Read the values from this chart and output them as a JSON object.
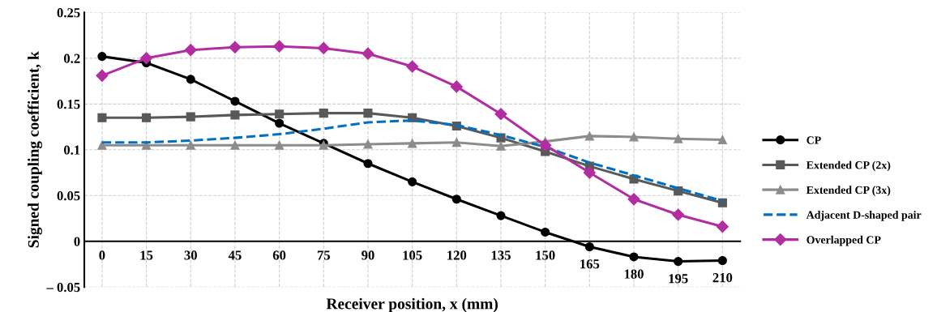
{
  "chart_data": {
    "type": "line",
    "xlabel": "Receiver position, x (mm)",
    "ylabel": "Signed coupling coefficient, k",
    "categories": [
      "0",
      "15",
      "30",
      "45",
      "60",
      "75",
      "90",
      "105",
      "120",
      "135",
      "150",
      "165",
      "180",
      "195",
      "210"
    ],
    "ylim": [
      -0.05,
      0.25
    ],
    "yticks": [
      {
        "value": -0.05,
        "label": "– 0.05"
      },
      0,
      0.05,
      0.1,
      0.15,
      0.2,
      0.25
    ],
    "grid": true,
    "legend": "right",
    "series": [
      {
        "name": "CP",
        "color": "#000000",
        "marker": "circle",
        "line_style": "solid",
        "values": [
          0.202,
          0.195,
          0.177,
          0.153,
          0.129,
          0.107,
          0.085,
          0.065,
          0.046,
          0.028,
          0.01,
          -0.006,
          -0.017,
          -0.022,
          -0.021
        ]
      },
      {
        "name": "Extended CP (2x)",
        "color": "#595959",
        "marker": "square",
        "line_style": "solid",
        "values": [
          0.135,
          0.135,
          0.136,
          0.138,
          0.139,
          0.14,
          0.14,
          0.135,
          0.126,
          0.113,
          0.098,
          0.082,
          0.068,
          0.055,
          0.042
        ]
      },
      {
        "name": "Extended CP (3x)",
        "color": "#8c8c8c",
        "marker": "triangle",
        "line_style": "solid",
        "values": [
          0.105,
          0.105,
          0.105,
          0.105,
          0.105,
          0.105,
          0.106,
          0.107,
          0.108,
          0.104,
          0.109,
          0.115,
          0.114,
          0.112,
          0.111
        ]
      },
      {
        "name": "Adjacent D-shaped pair",
        "color": "#0070c0",
        "marker": "none",
        "line_style": "dashed",
        "values": [
          0.108,
          0.108,
          0.11,
          0.113,
          0.117,
          0.123,
          0.13,
          0.132,
          0.127,
          0.116,
          0.103,
          0.086,
          0.072,
          0.058,
          0.044
        ]
      },
      {
        "name": "Overlapped CP",
        "color": "#b22ea0",
        "marker": "diamond",
        "line_style": "solid",
        "values": [
          0.181,
          0.2,
          0.209,
          0.212,
          0.213,
          0.211,
          0.205,
          0.191,
          0.169,
          0.139,
          0.105,
          0.075,
          0.046,
          0.029,
          0.016
        ]
      }
    ]
  }
}
